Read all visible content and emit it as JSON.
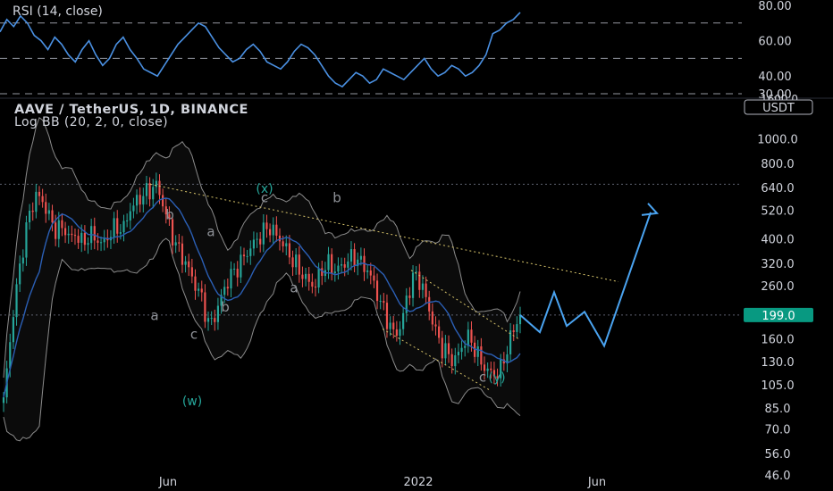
{
  "header": {
    "symbol_line": "AAVE / TetherUS, 1D, BINANCE",
    "indicator_line": "Log BB (20, 2, 0, close)",
    "rsi_title": "RSI (14, close)",
    "currency_button": "USDT"
  },
  "colors": {
    "background": "#000000",
    "text": "#d1d4dc",
    "candle_up": "#26a69a",
    "candle_down": "#ef5350",
    "rsi_line": "#4a90e2",
    "basis_line": "#2b5fb5",
    "bands": "#8c8c8c",
    "projection": "#4aa3f0",
    "channel": "#d6c36a",
    "wave_label_green": "#26a69a",
    "wave_label_gray": "#8f9298",
    "last_price_badge": "#089981"
  },
  "chart_data": [
    {
      "type": "line",
      "name": "rsi-panel",
      "title": "RSI (14, close)",
      "series": [
        {
          "name": "RSI (14, close)",
          "values": [
            65,
            72,
            68,
            74,
            70,
            63,
            60,
            55,
            62,
            58,
            52,
            48,
            55,
            60,
            52,
            46,
            50,
            58,
            62,
            55,
            50,
            44,
            42,
            40,
            46,
            52,
            58,
            62,
            66,
            70,
            68,
            62,
            56,
            52,
            48,
            50,
            55,
            58,
            54,
            48,
            46,
            44,
            48,
            54,
            58,
            56,
            52,
            46,
            40,
            36,
            34,
            38,
            42,
            40,
            36,
            38,
            44,
            42,
            40,
            38,
            42,
            46,
            50,
            44,
            40,
            42,
            46,
            44,
            40,
            42,
            46,
            52,
            64,
            66,
            70,
            72,
            76
          ]
        }
      ],
      "ylim": [
        30,
        80
      ],
      "y_ticks": [
        "80.00",
        "60.00",
        "40.00",
        "30.00"
      ],
      "reference_levels": [
        70,
        50,
        30
      ],
      "grid": false
    },
    {
      "type": "candlestick",
      "name": "price-panel",
      "title": "AAVE / TetherUS, 1D, BINANCE",
      "log_scale": true,
      "ylim": [
        42,
        1500
      ],
      "y_ticks": [
        46.0,
        56.0,
        70.0,
        85.0,
        105.0,
        130.0,
        160.0,
        199.0,
        260.0,
        320.0,
        400.0,
        520.0,
        640.0,
        800.0,
        1000.0,
        1300.0
      ],
      "y_tick_labels": [
        "46.0",
        "56.0",
        "70.0",
        "85.0",
        "105.0",
        "130.0",
        "160.0",
        "199.0",
        "260.0",
        "320.0",
        "400.0",
        "520.0",
        "640.0",
        "800.0",
        "1000.0",
        "1300.0"
      ],
      "top_partial_tick": "1600.0",
      "x_ticks": [
        "Jun",
        "2022",
        "Jun"
      ],
      "last_price": 199.0,
      "reference_levels": [
        199,
        660
      ],
      "closes": [
        90,
        160,
        260,
        380,
        520,
        600,
        560,
        480,
        430,
        450,
        400,
        420,
        380,
        420,
        400,
        380,
        420,
        450,
        430,
        520,
        560,
        600,
        620,
        660,
        560,
        450,
        380,
        340,
        300,
        260,
        230,
        180,
        200,
        240,
        280,
        300,
        330,
        360,
        390,
        420,
        450,
        420,
        390,
        350,
        320,
        290,
        270,
        260,
        300,
        320,
        300,
        310,
        330,
        340,
        320,
        300,
        260,
        220,
        190,
        165,
        180,
        240,
        290,
        270,
        220,
        180,
        150,
        140,
        130,
        145,
        165,
        150,
        130,
        120,
        115,
        120,
        145,
        175,
        199
      ],
      "wave_labels": [
        {
          "text": "(w)",
          "price": 87
        },
        {
          "text": "(x)",
          "price": 610
        },
        {
          "text": "(y)",
          "price": 108
        },
        {
          "text": "a",
          "price": 190
        },
        {
          "text": "b",
          "price": 480
        },
        {
          "text": "c",
          "price": 160
        },
        {
          "text": "a",
          "price": 410
        },
        {
          "text": "b",
          "price": 205
        },
        {
          "text": "c",
          "price": 560
        },
        {
          "text": "a",
          "price": 245
        },
        {
          "text": "b",
          "price": 560
        },
        {
          "text": "c",
          "price": 108
        }
      ],
      "projection_path": [
        199,
        170,
        245,
        180,
        205,
        150,
        510
      ],
      "channel_lines": [
        {
          "name": "upper-resistance",
          "from_price": 660,
          "to_price": 270
        },
        {
          "name": "down-channel-upper",
          "from_price": 300,
          "to_price": 160
        },
        {
          "name": "down-channel-lower",
          "from_price": 175,
          "to_price": 100
        }
      ]
    }
  ]
}
